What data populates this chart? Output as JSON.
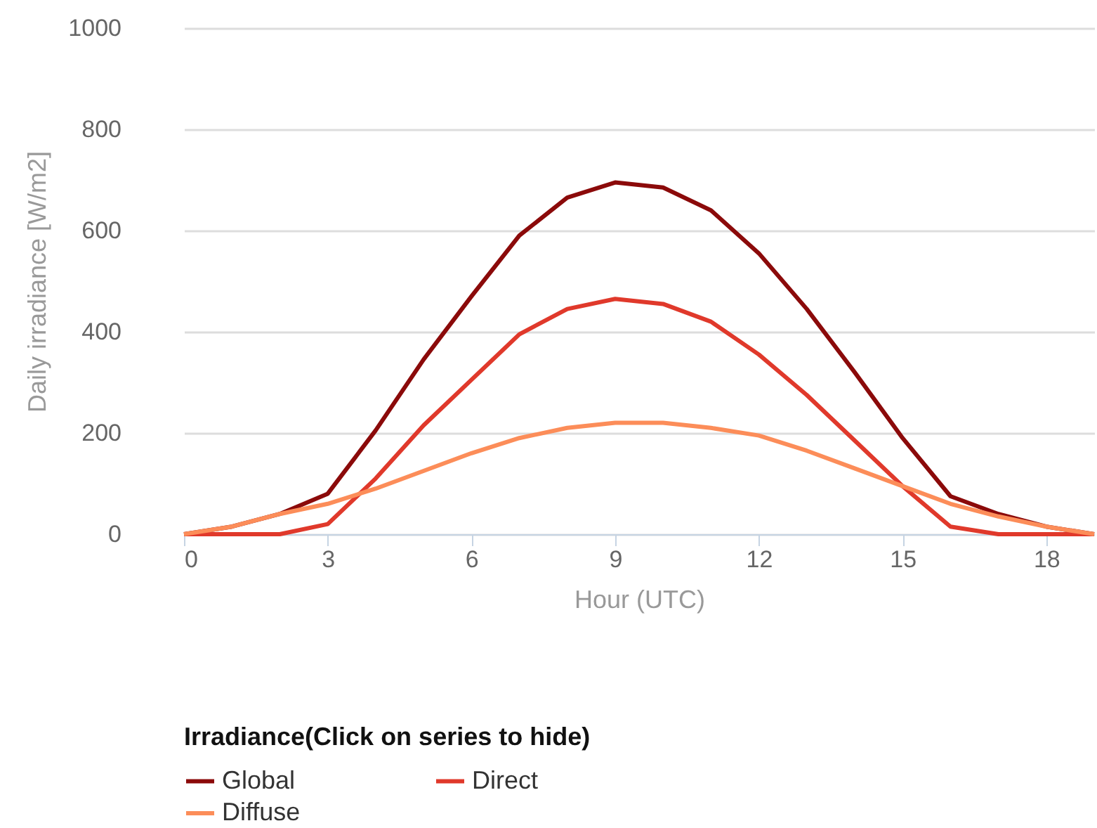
{
  "chart_data": {
    "type": "line",
    "xlabel": "Hour (UTC)",
    "ylabel": "Daily irradiance [W/m2]",
    "legend_title": "Irradiance(Click on series to hide)",
    "x": [
      0,
      1,
      2,
      3,
      4,
      5,
      6,
      7,
      8,
      9,
      10,
      11,
      12,
      13,
      14,
      15,
      16,
      17,
      18,
      19
    ],
    "series": [
      {
        "name": "Global",
        "color": "#8b0a0a",
        "values": [
          0,
          15,
          40,
          80,
          205,
          345,
          470,
          590,
          665,
          695,
          685,
          640,
          555,
          445,
          320,
          190,
          75,
          40,
          15,
          0
        ]
      },
      {
        "name": "Direct",
        "color": "#e0392b",
        "values": [
          0,
          0,
          0,
          20,
          110,
          215,
          305,
          395,
          445,
          465,
          455,
          420,
          355,
          275,
          185,
          95,
          15,
          0,
          0,
          0
        ]
      },
      {
        "name": "Diffuse",
        "color": "#fc8d59",
        "values": [
          0,
          15,
          40,
          60,
          90,
          125,
          160,
          190,
          210,
          220,
          220,
          210,
          195,
          165,
          130,
          95,
          60,
          35,
          15,
          0
        ]
      }
    ],
    "xlim": [
      0,
      19
    ],
    "xticks": [
      0,
      3,
      6,
      9,
      12,
      15,
      18
    ],
    "ylim": [
      0,
      1000
    ],
    "yticks": [
      0,
      200,
      400,
      600,
      800,
      1000
    ],
    "grid": "y",
    "legend": "bottom",
    "marker": "none",
    "line_style": "solid"
  }
}
